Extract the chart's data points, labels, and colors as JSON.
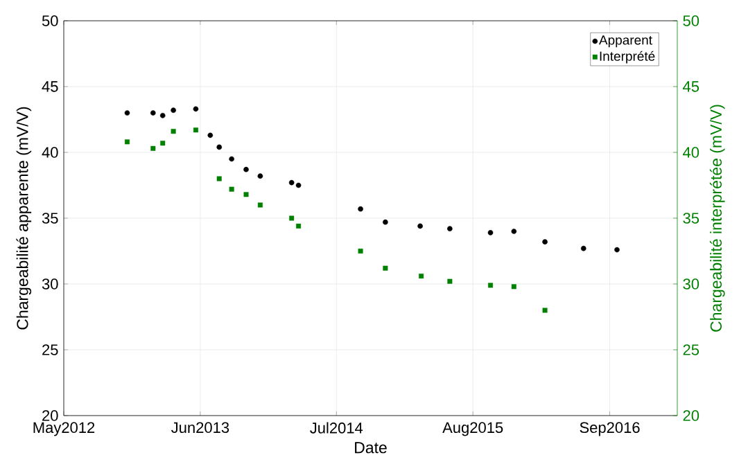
{
  "chart_data": {
    "type": "scatter",
    "xlabel": "Date",
    "ylabel": "Chargeabilité apparente (mV/V)",
    "y2label": "Chargeabilité interprétée (mV/V)",
    "xlim": [
      "2012-05-01",
      "2017-03-16"
    ],
    "xticks": [
      {
        "value": "2012-05-01",
        "label": "May2012"
      },
      {
        "value": "2013-06-01",
        "label": "Jun2013"
      },
      {
        "value": "2014-07-01",
        "label": "Jul2014"
      },
      {
        "value": "2015-08-01",
        "label": "Aug2015"
      },
      {
        "value": "2016-09-01",
        "label": "Sep2016"
      }
    ],
    "ylim": [
      20,
      50
    ],
    "yticks": [
      20,
      25,
      30,
      35,
      40,
      45,
      50
    ],
    "y2lim": [
      20,
      50
    ],
    "y2ticks": [
      20,
      25,
      30,
      35,
      40,
      45,
      50
    ],
    "grid": true,
    "legend": "top right",
    "series": [
      {
        "name": "Apparent",
        "color": "#000000",
        "marker": "circle",
        "x": [
          "2012-11-01",
          "2013-01-15",
          "2013-02-12",
          "2013-03-15",
          "2013-05-19",
          "2013-06-30",
          "2013-07-26",
          "2013-08-31",
          "2013-10-12",
          "2013-11-22",
          "2014-02-21",
          "2014-03-13",
          "2014-09-09",
          "2014-11-20",
          "2015-03-01",
          "2015-05-26",
          "2015-09-21",
          "2015-11-28",
          "2016-02-26",
          "2016-06-17",
          "2016-09-22"
        ],
        "values": [
          43.0,
          43.0,
          42.8,
          43.2,
          43.3,
          41.3,
          40.4,
          39.5,
          38.7,
          38.2,
          37.7,
          37.5,
          35.7,
          34.7,
          34.4,
          34.2,
          33.9,
          34.0,
          33.2,
          32.7,
          32.6
        ]
      },
      {
        "name": "Interprété",
        "color": "#008000",
        "marker": "square",
        "axis": "y2",
        "x": [
          "2012-11-01",
          "2013-01-15",
          "2013-02-12",
          "2013-03-15",
          "2013-05-19",
          "2013-07-26",
          "2013-08-31",
          "2013-10-12",
          "2013-11-22",
          "2014-02-21",
          "2014-03-13",
          "2014-09-09",
          "2014-11-20",
          "2015-03-04",
          "2015-05-26",
          "2015-09-21",
          "2015-11-28",
          "2016-02-26"
        ],
        "values": [
          40.8,
          40.3,
          40.7,
          41.6,
          41.7,
          38.0,
          37.2,
          36.8,
          36.0,
          35.0,
          34.4,
          32.5,
          31.2,
          30.6,
          30.2,
          29.9,
          29.8,
          28.0
        ]
      }
    ]
  }
}
